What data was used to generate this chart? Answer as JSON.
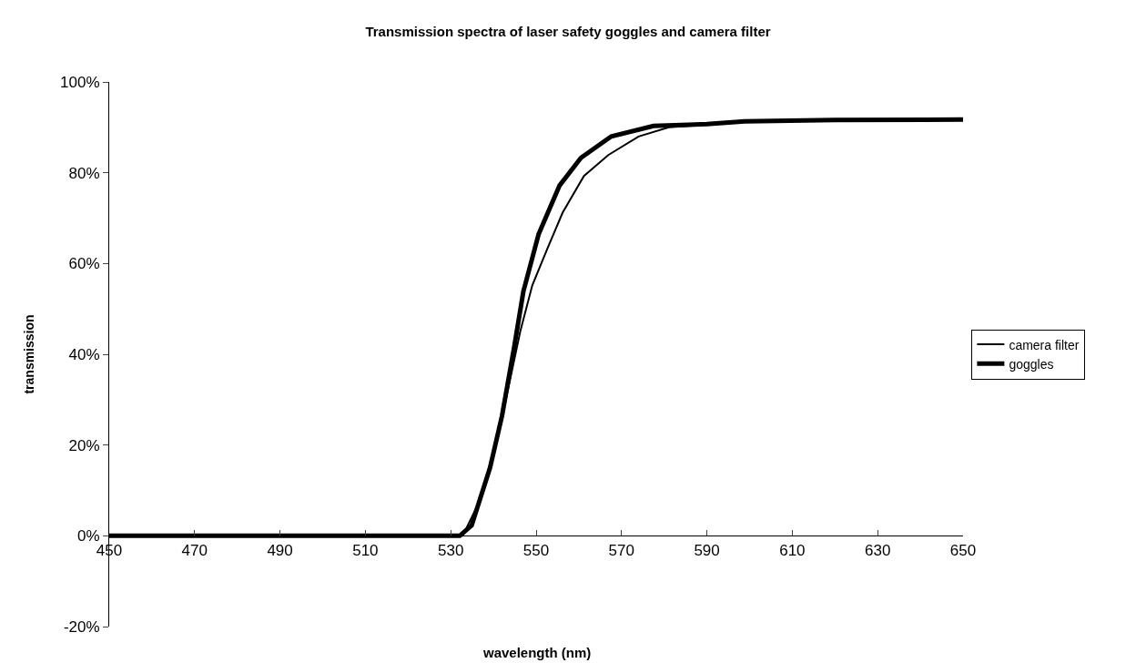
{
  "chart_data": {
    "type": "line",
    "title": "Transmission spectra of laser safety goggles and camera filter",
    "xlabel": "wavelength (nm)",
    "ylabel": "transmission",
    "xlim": [
      450,
      650
    ],
    "xticks": [
      450,
      470,
      490,
      510,
      530,
      550,
      570,
      590,
      610,
      630,
      650
    ],
    "ylim": [
      -20,
      100
    ],
    "yticks": [
      {
        "value": -20,
        "label": "-20%"
      },
      {
        "value": 0,
        "label": "0%"
      },
      {
        "value": 20,
        "label": "20%"
      },
      {
        "value": 40,
        "label": "40%"
      },
      {
        "value": 60,
        "label": "60%"
      },
      {
        "value": 80,
        "label": "80%"
      },
      {
        "value": 100,
        "label": "100%"
      }
    ],
    "grid": false,
    "legend": "right",
    "marker": "none",
    "series": [
      {
        "name": "camera filter",
        "color": "#000000",
        "x": [
          450,
          500,
          532.8,
          537.1,
          542,
          546.3,
          549.1,
          552.6,
          556.2,
          561.2,
          566.9,
          574,
          581.1,
          590,
          598.8,
          620,
          650
        ],
        "values": [
          0,
          0,
          0,
          8.3,
          26,
          45.1,
          55.2,
          63.2,
          71.2,
          79.3,
          83.9,
          88,
          90,
          90.6,
          91.3,
          91.6,
          91.7
        ]
      },
      {
        "name": "goggles",
        "color": "#000000",
        "x": [
          450,
          500,
          532.1,
          534.9,
          539.2,
          542,
          544.9,
          547,
          550.6,
          555.5,
          560.5,
          567.6,
          577.5,
          590,
          598.8,
          620,
          650
        ],
        "values": [
          0,
          0,
          0,
          2.3,
          15,
          26.4,
          41.8,
          53.8,
          66.5,
          77.2,
          83.3,
          88,
          90.3,
          90.7,
          91.3,
          91.6,
          91.7
        ]
      }
    ]
  }
}
